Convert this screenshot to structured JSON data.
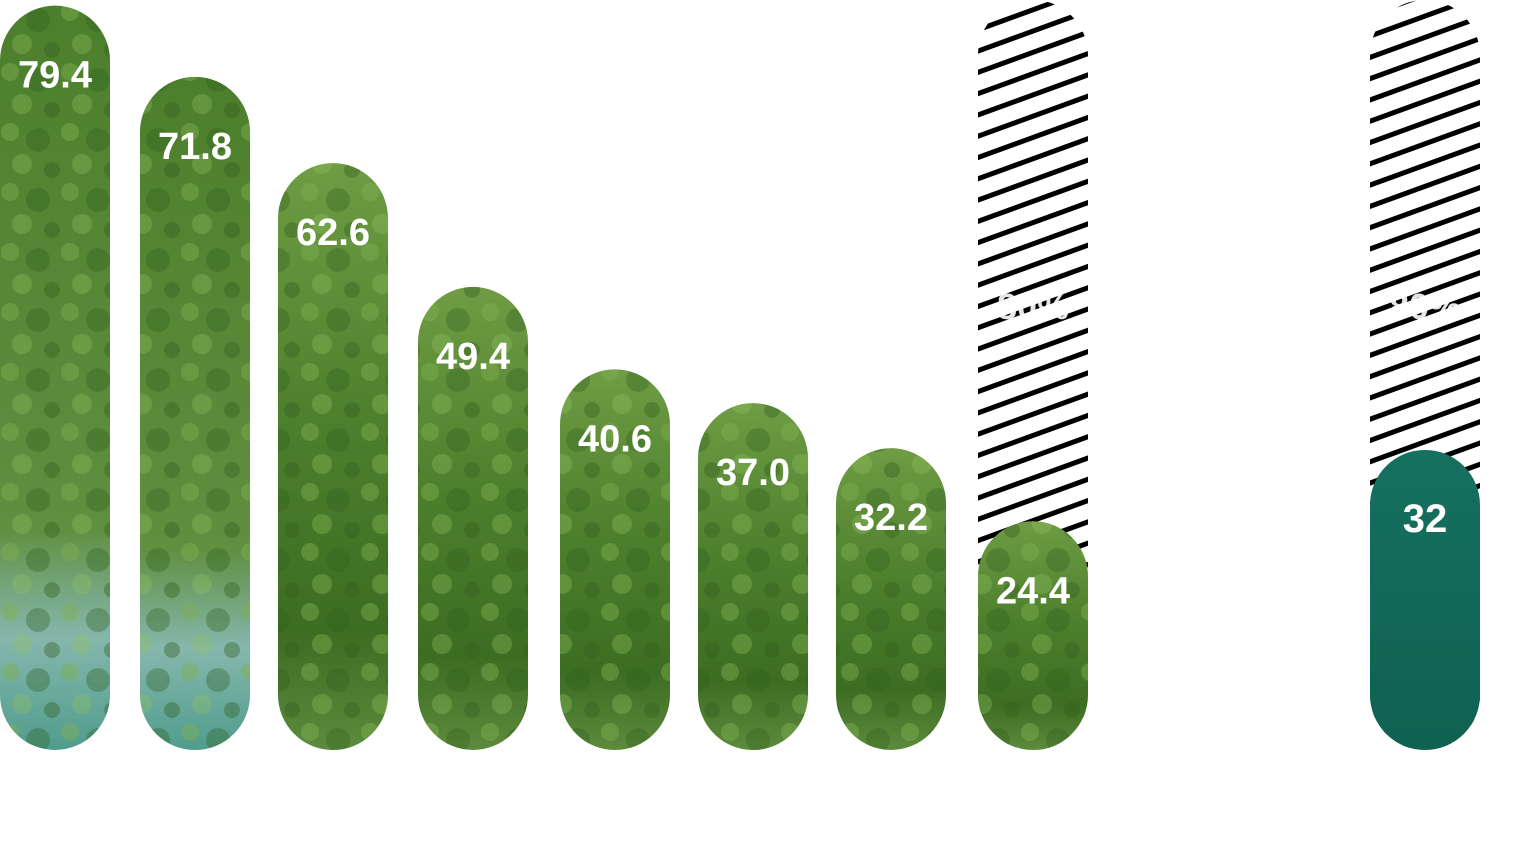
{
  "chart_data": {
    "type": "bar",
    "categories": [
      "",
      "",
      "",
      "",
      "",
      "",
      "",
      "",
      "",
      "",
      ""
    ],
    "values": [
      79.4,
      71.8,
      62.6,
      49.4,
      40.6,
      37.0,
      32.2,
      24.4,
      null,
      null,
      32
    ],
    "value_labels": [
      "79.4",
      "71.8",
      "62.6",
      "49.4",
      "40.6",
      "37.0",
      "32.2",
      "24.4",
      "",
      "",
      "32"
    ],
    "targets": [
      {
        "bar_index": 7,
        "value": 80,
        "label": "80%"
      },
      {
        "bar_index": 10,
        "value": 80,
        "label": "80%"
      }
    ],
    "ylim": [
      0,
      80
    ],
    "grid": false,
    "legend": "none",
    "title": "",
    "xlabel": "",
    "ylabel": ""
  },
  "colors": {
    "background": "#ffffff",
    "bar_fill_nature": [
      "#5c8f32",
      "#3f7226",
      "#7fa855"
    ],
    "bar_fill_water": "#86b7ad",
    "highlight_bar": "#146a5c",
    "target_hatch": "#000000",
    "label_text": "#ffffff"
  }
}
